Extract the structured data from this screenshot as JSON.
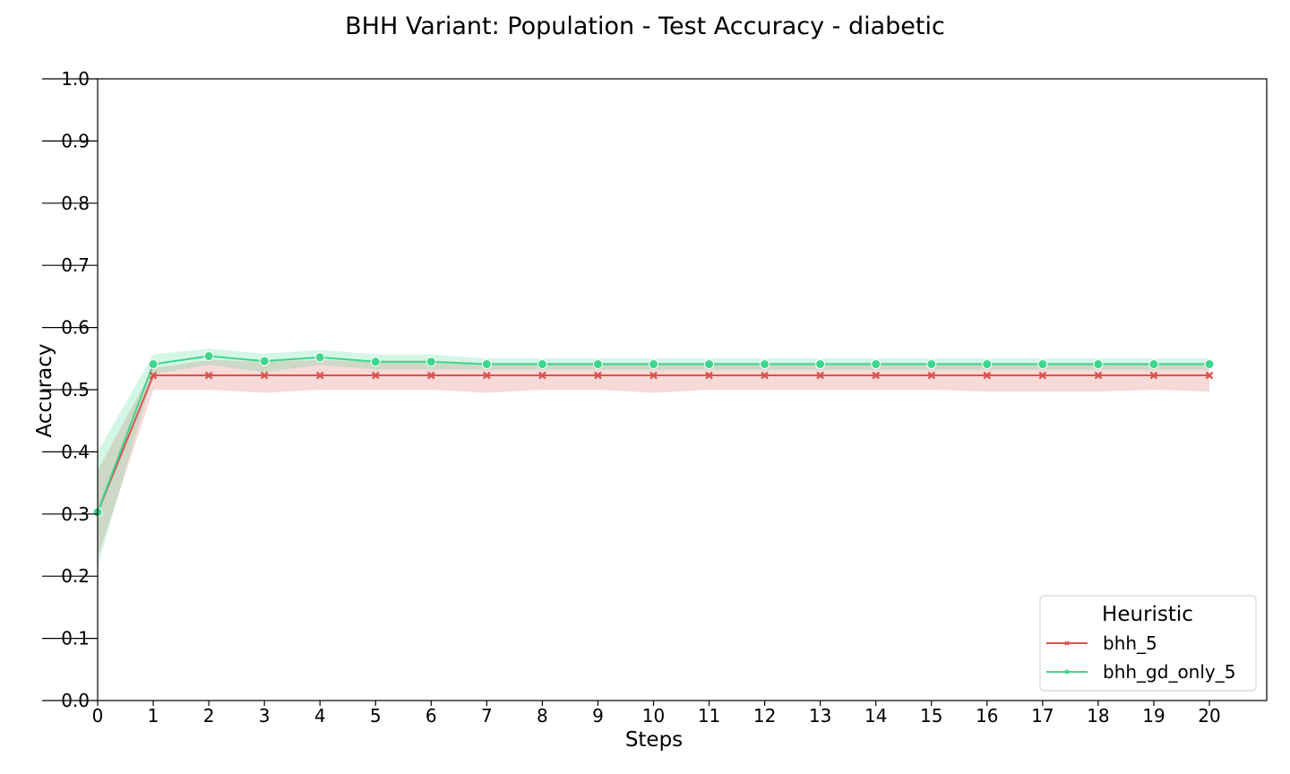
{
  "chart_data": {
    "type": "line",
    "title": "BHH Variant: Population - Test Accuracy - diabetic",
    "xlabel": "Steps",
    "ylabel": "Accuracy",
    "xlim": [
      0,
      21
    ],
    "ylim": [
      0.0,
      1.0
    ],
    "x_ticks": [
      "0",
      "1",
      "2",
      "3",
      "4",
      "5",
      "6",
      "7",
      "8",
      "9",
      "10",
      "11",
      "12",
      "13",
      "14",
      "15",
      "16",
      "17",
      "18",
      "19",
      "20"
    ],
    "y_ticks": [
      "0.0",
      "0.1",
      "0.2",
      "0.3",
      "0.4",
      "0.5",
      "0.6",
      "0.7",
      "0.8",
      "0.9",
      "1.0"
    ],
    "grid": false,
    "legend": {
      "title": "Heuristic",
      "placement": "bottom-right"
    },
    "x": [
      0,
      1,
      2,
      3,
      4,
      5,
      6,
      7,
      8,
      9,
      10,
      11,
      12,
      13,
      14,
      15,
      16,
      17,
      18,
      19,
      20
    ],
    "series": [
      {
        "name": "bhh_5",
        "color": "#d9534f",
        "marker": "x",
        "values": [
          0.303,
          0.523,
          0.523,
          0.523,
          0.523,
          0.523,
          0.523,
          0.523,
          0.523,
          0.523,
          0.523,
          0.523,
          0.523,
          0.523,
          0.523,
          0.523,
          0.523,
          0.523,
          0.523,
          0.523,
          0.523
        ],
        "ci_low": [
          0.23,
          0.5,
          0.5,
          0.495,
          0.5,
          0.5,
          0.5,
          0.495,
          0.5,
          0.5,
          0.495,
          0.5,
          0.5,
          0.5,
          0.5,
          0.5,
          0.497,
          0.497,
          0.497,
          0.5,
          0.497
        ],
        "ci_high": [
          0.37,
          0.535,
          0.548,
          0.545,
          0.548,
          0.545,
          0.545,
          0.543,
          0.543,
          0.543,
          0.543,
          0.543,
          0.543,
          0.543,
          0.543,
          0.543,
          0.543,
          0.543,
          0.543,
          0.543,
          0.543
        ]
      },
      {
        "name": "bhh_gd_only_5",
        "color": "#3dd68c",
        "marker": "o",
        "values": [
          0.303,
          0.541,
          0.554,
          0.546,
          0.552,
          0.545,
          0.545,
          0.541,
          0.541,
          0.541,
          0.541,
          0.541,
          0.541,
          0.541,
          0.541,
          0.541,
          0.541,
          0.541,
          0.541,
          0.541,
          0.541
        ],
        "ci_low": [
          0.215,
          0.525,
          0.54,
          0.528,
          0.54,
          0.533,
          0.533,
          0.532,
          0.532,
          0.532,
          0.532,
          0.532,
          0.532,
          0.532,
          0.532,
          0.532,
          0.532,
          0.532,
          0.532,
          0.532,
          0.532
        ],
        "ci_high": [
          0.4,
          0.557,
          0.566,
          0.558,
          0.564,
          0.557,
          0.557,
          0.55,
          0.55,
          0.55,
          0.55,
          0.55,
          0.55,
          0.55,
          0.55,
          0.55,
          0.55,
          0.55,
          0.55,
          0.55,
          0.55
        ]
      }
    ]
  }
}
